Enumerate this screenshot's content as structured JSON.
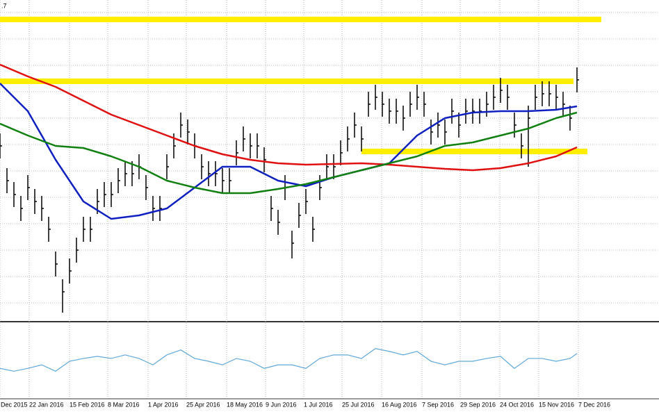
{
  "chart_data": {
    "type": "candlestick",
    "label": ".7",
    "xlim": [
      0,
      94.8
    ],
    "ylim": [
      0,
      462
    ],
    "grid": true,
    "xticks": [
      {
        "value": 0,
        "label": "Dec 2015"
      },
      {
        "value": 4.2,
        "label": "22 Jan 2016"
      },
      {
        "value": 10.0,
        "label": "15 Feb 2016"
      },
      {
        "value": 15.5,
        "label": "8 Mar 2016"
      },
      {
        "value": 21.3,
        "label": "1 Apr 2016"
      },
      {
        "value": 26.8,
        "label": "25 Apr 2016"
      },
      {
        "value": 32.6,
        "label": "18 May 2016"
      },
      {
        "value": 38.2,
        "label": "9 Jun 2016"
      },
      {
        "value": 43.7,
        "label": "1 Jul 2016"
      },
      {
        "value": 49.2,
        "label": "25 Jul 2016"
      },
      {
        "value": 54.9,
        "label": "16 Aug 2016"
      },
      {
        "value": 60.7,
        "label": "7 Sep 2016"
      },
      {
        "value": 66.2,
        "label": "29 Sep 2016"
      },
      {
        "value": 71.9,
        "label": "24 Oct 2016"
      },
      {
        "value": 77.5,
        "label": "15 Nov 2016"
      },
      {
        "value": 83.2,
        "label": "7 Dec 2016"
      }
    ],
    "price": {
      "color": "#000000",
      "x": [
        0,
        1,
        2,
        3,
        4,
        5,
        6,
        7,
        8,
        9,
        10,
        11,
        12,
        13,
        14,
        15,
        16,
        17,
        18,
        19,
        20,
        21,
        22,
        23,
        24,
        25,
        26,
        27,
        28,
        29,
        30,
        31,
        32,
        33,
        34,
        35,
        36,
        37,
        38,
        39,
        40,
        41,
        42,
        43,
        44,
        45,
        46,
        47,
        48,
        49,
        50,
        51,
        52,
        53,
        54,
        55,
        56,
        57,
        58,
        59,
        60,
        61,
        62,
        63,
        64,
        65,
        66,
        67,
        68,
        69,
        70,
        71,
        72,
        73,
        74,
        75,
        76,
        77,
        78,
        79,
        80,
        81,
        82,
        83
      ],
      "close": [
        252,
        202,
        182,
        162,
        192,
        172,
        162,
        132,
        82,
        42,
        72,
        102,
        132,
        132,
        172,
        182,
        182,
        202,
        212,
        212,
        222,
        192,
        162,
        162,
        222,
        252,
        282,
        272,
        252,
        222,
        212,
        212,
        202,
        202,
        242,
        262,
        252,
        252,
        232,
        162,
        142,
        192,
        112,
        152,
        172,
        132,
        192,
        222,
        222,
        242,
        262,
        282,
        262,
        312,
        322,
        312,
        302,
        302,
        292,
        312,
        322,
        312,
        272,
        282,
        272,
        302,
        282,
        302,
        302,
        302,
        312,
        322,
        332,
        322,
        282,
        252,
        292,
        322,
        327,
        327,
        322,
        312,
        292,
        347
      ],
      "high": [
        270,
        220,
        200,
        180,
        210,
        190,
        180,
        150,
        100,
        60,
        90,
        120,
        150,
        150,
        190,
        200,
        200,
        220,
        230,
        230,
        240,
        210,
        180,
        180,
        240,
        270,
        300,
        290,
        270,
        240,
        230,
        230,
        220,
        220,
        260,
        280,
        270,
        270,
        250,
        180,
        160,
        210,
        130,
        170,
        190,
        150,
        210,
        240,
        240,
        260,
        280,
        300,
        280,
        330,
        340,
        330,
        320,
        320,
        310,
        330,
        340,
        330,
        290,
        300,
        290,
        320,
        300,
        320,
        320,
        320,
        330,
        340,
        350,
        340,
        300,
        270,
        310,
        340,
        345,
        345,
        340,
        330,
        310,
        365
      ],
      "low": [
        234,
        184,
        164,
        144,
        174,
        154,
        144,
        114,
        64,
        12,
        54,
        84,
        114,
        114,
        154,
        164,
        164,
        184,
        194,
        194,
        204,
        174,
        144,
        144,
        204,
        234,
        264,
        254,
        234,
        204,
        194,
        194,
        184,
        184,
        224,
        244,
        234,
        234,
        214,
        144,
        124,
        174,
        90,
        134,
        154,
        114,
        174,
        204,
        204,
        224,
        244,
        264,
        244,
        294,
        304,
        294,
        284,
        284,
        274,
        294,
        304,
        294,
        254,
        264,
        254,
        284,
        264,
        284,
        284,
        284,
        294,
        304,
        314,
        304,
        264,
        234,
        222,
        304,
        309,
        309,
        304,
        294,
        274,
        329
      ]
    },
    "ma_x": [
      0,
      4,
      8,
      12,
      16,
      20,
      24,
      28,
      32,
      36,
      40,
      44,
      48,
      52,
      56,
      60,
      64,
      68,
      72,
      76,
      80,
      83
    ],
    "series": [
      {
        "color": "#e01010",
        "values": [
          369,
          352,
          337,
          317,
          297,
          282,
          267,
          252,
          240,
          232,
          227,
          225,
          226,
          227,
          225,
          222,
          219,
          217,
          220,
          227,
          237,
          250
        ]
      },
      {
        "color": "#1020c0",
        "values": [
          342,
          302,
          232,
          172,
          147,
          152,
          162,
          192,
          222,
          222,
          202,
          194,
          207,
          217,
          227,
          267,
          292,
          300,
          302,
          302,
          304,
          309
        ]
      },
      {
        "color": "#108010",
        "values": [
          284,
          267,
          252,
          249,
          237,
          222,
          202,
          192,
          184,
          184,
          190,
          197,
          207,
          217,
          227,
          237,
          252,
          257,
          267,
          277,
          292,
          300
        ]
      }
    ],
    "levels": [
      {
        "color": "#ffee00",
        "value": 434,
        "x": [
          0,
          86.5
        ]
      },
      {
        "color": "#ffee00",
        "value": 345,
        "x": [
          0,
          82.5
        ]
      },
      {
        "color": "#ffee00",
        "value": 244,
        "x": [
          52,
          84.5
        ]
      }
    ],
    "oscillator": {
      "color": "#5fa8d8",
      "ylim": [
        0,
        100
      ],
      "x": [
        0,
        2,
        4,
        6,
        8,
        10,
        12,
        14,
        16,
        18,
        20,
        22,
        24,
        26,
        28,
        30,
        32,
        34,
        36,
        38,
        40,
        42,
        44,
        46,
        48,
        50,
        52,
        54,
        56,
        58,
        60,
        62,
        64,
        66,
        68,
        70,
        72,
        74,
        76,
        78,
        80,
        82,
        83
      ],
      "values": [
        39,
        35,
        39,
        44,
        35,
        49,
        53,
        56,
        53,
        58,
        53,
        44,
        58,
        65,
        53,
        49,
        44,
        53,
        49,
        39,
        44,
        44,
        39,
        53,
        58,
        58,
        53,
        67,
        63,
        58,
        63,
        49,
        44,
        49,
        49,
        53,
        56,
        39,
        53,
        53,
        49,
        53,
        60
      ]
    }
  }
}
